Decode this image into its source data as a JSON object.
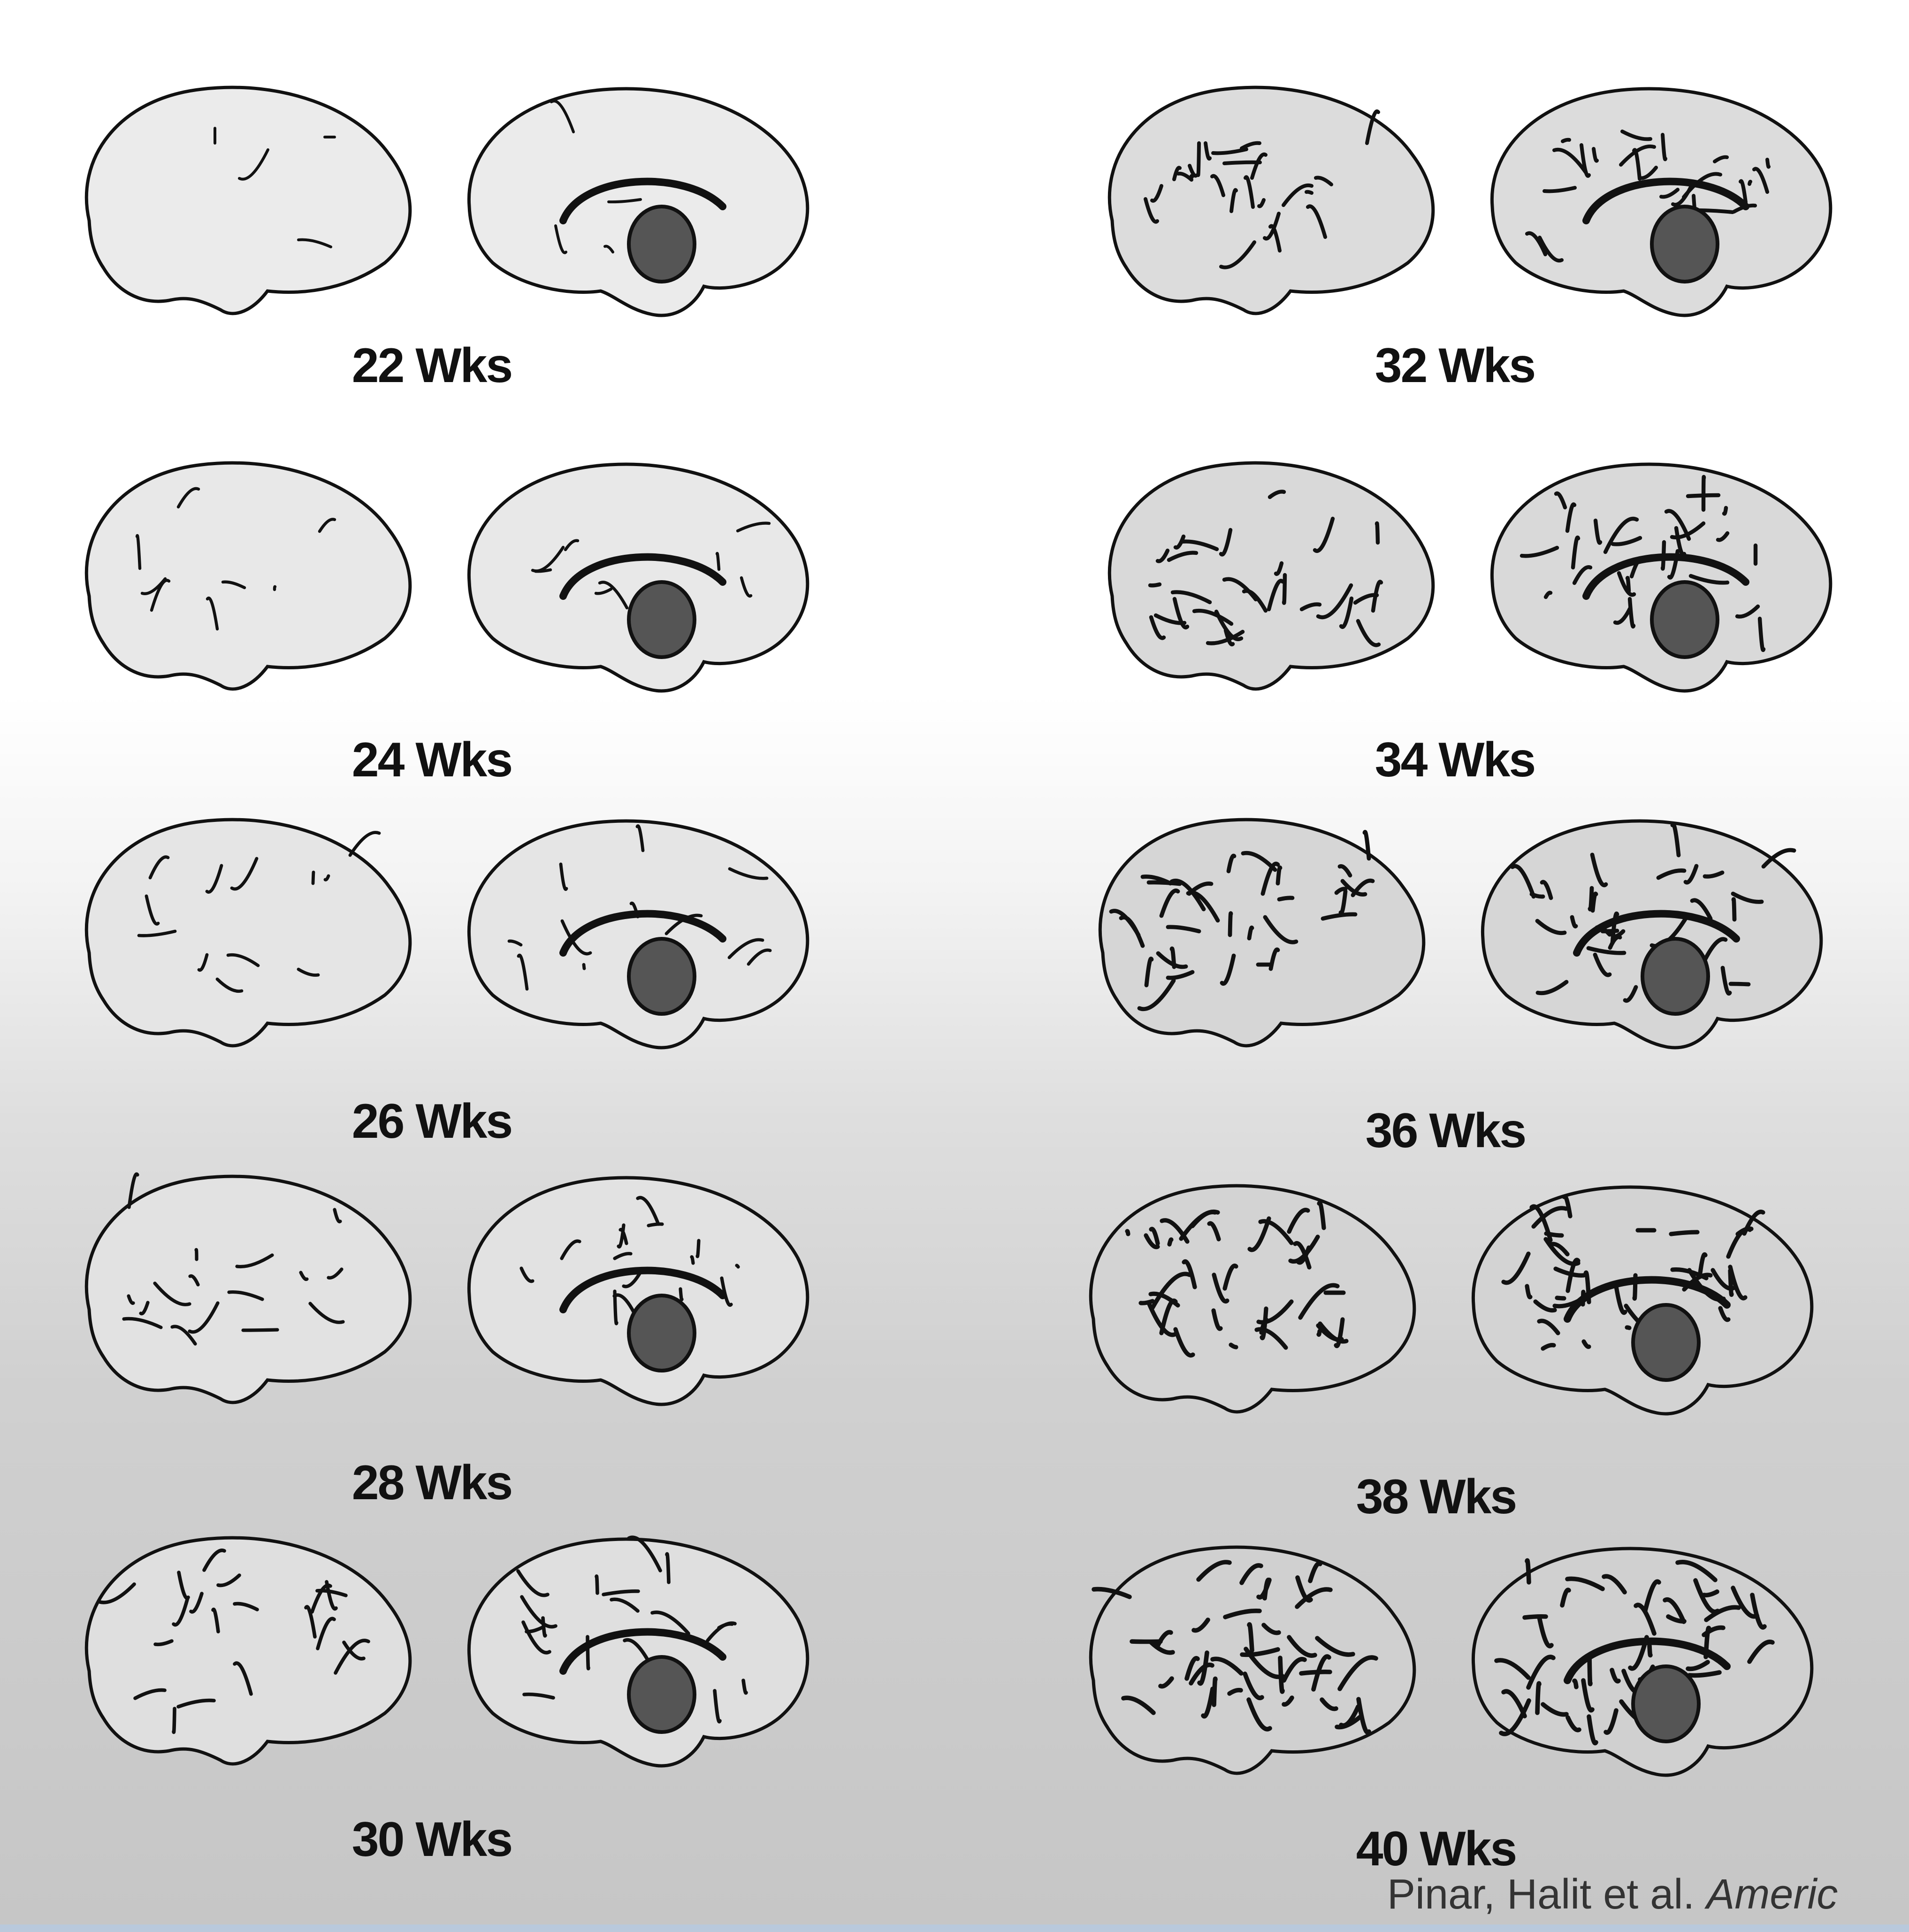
{
  "figure": {
    "stages": [
      {
        "label": "22 Wks"
      },
      {
        "label": "24 Wks"
      },
      {
        "label": "26 Wks"
      },
      {
        "label": "28 Wks"
      },
      {
        "label": "30 Wks"
      },
      {
        "label": "32 Wks"
      },
      {
        "label": "34 Wks"
      },
      {
        "label": "36 Wks"
      },
      {
        "label": "38 Wks"
      },
      {
        "label": "40 Wks"
      }
    ]
  },
  "citation": {
    "authors": "Pinar, Halit et al. ",
    "journal": "Americ"
  },
  "colors": {
    "ink": "#111111",
    "background_top": "#ffffff",
    "background_bottom": "#c6c6c6"
  }
}
